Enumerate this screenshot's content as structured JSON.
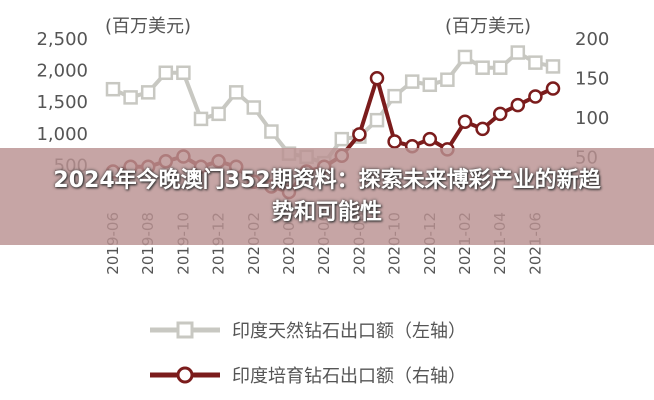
{
  "chart_data": {
    "type": "line",
    "title": "2024年今晚澳门352期资料：探索未来博彩产业的新趋势和可能性",
    "y_label": "(百万美元)",
    "y2_label": "(百万美元)",
    "categories": [
      "2019-06",
      null,
      "2019-08",
      null,
      "2019-10",
      null,
      "2019-12",
      null,
      "2020-02",
      null,
      "2020-04",
      null,
      "2020-06",
      null,
      "2020-08",
      null,
      "2020-10",
      null,
      "2020-12",
      null,
      "2021-02",
      null,
      "2021-04",
      null,
      "2021-06",
      null
    ],
    "ylim": [
      0,
      2500
    ],
    "yticks": [
      500,
      {
        "value": 1000,
        "label": "1,000"
      },
      {
        "value": 1500,
        "label": "1,500"
      },
      {
        "value": 2000,
        "label": "2,000"
      },
      {
        "value": 2500,
        "label": "2,500"
      }
    ],
    "y2lim": [
      0,
      200
    ],
    "y2ticks": [
      50,
      100,
      150,
      200
    ],
    "series": [
      {
        "name": "印度天然钻石出口额（左轴）",
        "color": "#c8c8c2",
        "marker": "square",
        "values": [
          1690,
          1560,
          1640,
          1950,
          1950,
          1220,
          1300,
          1640,
          1400,
          1020,
          670,
          620,
          520,
          900,
          940,
          1200,
          1580,
          1810,
          1760,
          1840,
          2200,
          2030,
          2030,
          2270,
          2110,
          2050
        ]
      },
      {
        "name": "印度培育钻石出口额（右轴）",
        "color": "#7b1c1c",
        "marker": "circle",
        "axis": "y2",
        "values": [
          31,
          37,
          37,
          44,
          50,
          37,
          44,
          37,
          18,
          12,
          5,
          31,
          37,
          51,
          78,
          149,
          69,
          63,
          72,
          59,
          94,
          85,
          104,
          115,
          126,
          136
        ]
      }
    ]
  }
}
